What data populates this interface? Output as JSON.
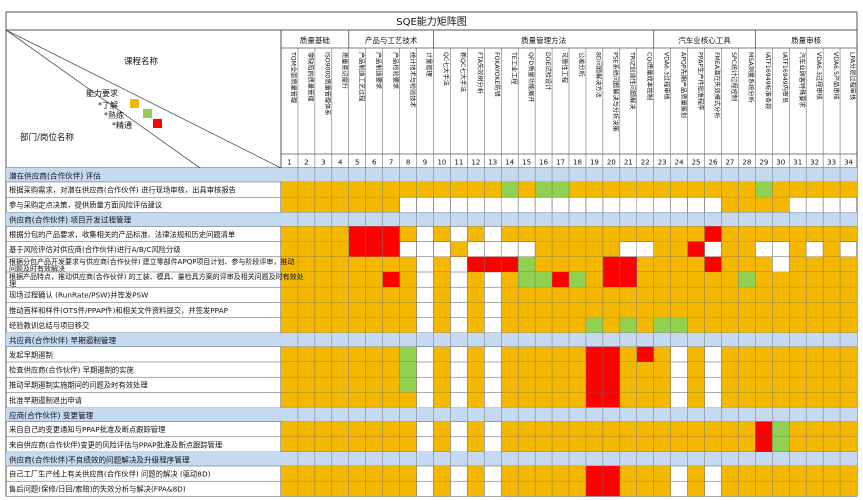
{
  "title": "SQE能力矩阵图",
  "corner": {
    "course_label": "课程名称",
    "ability_label": "能力要求",
    "dept_label": "部门/岗位名称",
    "legend": [
      {
        "label": "*了解",
        "level": "know",
        "color": "#f5b800"
      },
      {
        "label": "*熟练",
        "level": "skilled",
        "color": "#92d050"
      },
      {
        "label": "*精通",
        "level": "expert",
        "color": "#ff0000"
      }
    ]
  },
  "colors": {
    "O": "#f5b800",
    "G": "#92d050",
    "R": "#ff0000",
    "band": "#c5d9f1",
    "line": "#555555"
  },
  "groups": [
    {
      "name": "质量基础",
      "span": 4
    },
    {
      "name": "产品与工艺技术",
      "span": 5
    },
    {
      "name": "质量管理方法",
      "span": 13
    },
    {
      "name": "汽车业核心工具",
      "span": 6
    },
    {
      "name": "质量审核",
      "span": 6
    }
  ],
  "courses": [
    "TQM全面质量管理",
    "零缺陷的质量管理",
    "ISO9000质量管理体系",
    "质量意识提升",
    "产品制造工艺过程",
    "产品制造要求",
    "产品检验要求",
    "统计技术与检验技术",
    "计量管理",
    "QC七大手法",
    "新QC七大手法",
    "FTA失效树分析",
    "FOKAYOKE防错",
    "TE工业工程",
    "QFD质量功能展开",
    "DOE试验设计",
    "可靠性工程",
    "公差分析",
    "8D问题解决方法",
    "PSE系统问题解决与分析决策",
    "TRIZ创造性问题解决",
    "CQI质量成本控制",
    "VDA6.3过程审核",
    "APQP先期产品质量策划",
    "PPAP生产件批准程序",
    "FMEA潜在失效模式分析",
    "SPC统计过程控制",
    "MSA测量系统分析",
    "IATF16949标准条款",
    "IATF16949内审员",
    "汽车业顾客特殊要求",
    "VDA6.3过程审核",
    "VDA6.5产品审核",
    "LPA分层过程审核"
  ],
  "rows": [
    {
      "type": "band",
      "label": "潜在供应商(合作伙伴) 评估"
    },
    {
      "type": "row",
      "label": "根据采购需求，对潜在供应商(合作伙伴) 进行现场审核，出具审核报告",
      "cells": "OOOOOOOOOOOOOGOGGOOOOOOOOOOOGOOOOO"
    },
    {
      "type": "row",
      "label": "参与采购定点决策，提供质量方面风险评估建议",
      "cells": "OOOOOOO...................OOOO...."
    },
    {
      "type": "band",
      "label": "供应商(合作伙伴) 项目开发过程管理"
    },
    {
      "type": "row",
      "label": "根据分包的产品要求，收集相关的产品标准、法律法规和历史问题清单",
      "cells": "OOOORRRO.O.O.OOOOOOOOOOOOROOOOOOOO"
    },
    {
      "type": "row",
      "label": "基于风险评估对供应商(合作伙伴)进行A/B/C风险分级",
      "cells": "OOOORRR...O....OOOOO..OOR.OO..O.O"
    },
    {
      "type": "row",
      "label": "根据分包产品开发要求与供应商(合作伙伴) 建立零部件APQP项目计划、参与阶段评审，推动问题及时有效解决",
      "cells": "OOOOOOOO.O.RRRGOOOORROOOOROOO.OOOO"
    },
    {
      "type": "row",
      "label": "根据产品特点，推动供应商(合作伙伴) 的工装、模具、量检具方案的评审及相关问题及时有效处理",
      "cells": "OOOOOORO.O.O.OGGRGORROOOOOOGOOOOOO"
    },
    {
      "type": "row",
      "label": "现场过程确认 (RunRate/PSW)并签发PSW",
      "cells": "OOOOOOOO.O.O.OOOOOOOOOOOOOOOOOOOOO"
    },
    {
      "type": "row",
      "label": "推动首样和样件(OTS件/PPAP件)和相关文件资料提交，并签发PPAP",
      "cells": "OOOOOOOO.O.O.OOOOOOOOOOOOOOOOOOOOO"
    },
    {
      "type": "row",
      "label": "经验教训总结与项目移交",
      "cells": "OOOOOOOO.O.O.OOOOOGOGOGGOOOOOOOOOO"
    },
    {
      "type": "band",
      "label": "共应商(合作伙伴) 早期遏制管理"
    },
    {
      "type": "row",
      "label": "发起早期遏制",
      "cells": "OOOOOOOG.O.O.OOOOORRORO.O.OOOOOOOO"
    },
    {
      "type": "row",
      "label": "检查供应商(合作伙伴) 早期遏制的实施",
      "cells": "OOOOOOOG.O.O.OOOOORROOO.O.OOOOOOOO"
    },
    {
      "type": "row",
      "label": "推动早期遏制实施期间的问题及时有效处理",
      "cells": "OOOOOOOG.O.O.OOOOORROOO.O.OOOOOOOO"
    },
    {
      "type": "row",
      "label": "批准早期遏制退出申请",
      "cells": "OOOOOOOO.O.O.OOOOORROOO.O.OOOOOOOO"
    },
    {
      "type": "band",
      "label": "应商(合作伙伴) 变更管理"
    },
    {
      "type": "row",
      "label": "来自自己的变更通知与PPAP批准及断点跟踪管理",
      "cells": "OOOOOOOO.O.O.OOOOOOOOOOOOOOORGOOOO"
    },
    {
      "type": "row",
      "label": "来自供应商(合作伙伴)变更的风险评估与PPAP批准及断点跟踪管理",
      "cells": "OOOOOOOO.O.O.OOOOOOOOOOOOOOORGOOOO"
    },
    {
      "type": "band",
      "label": "供应商(合作伙伴)不良绩效的问题解决及升级程序管理"
    },
    {
      "type": "row",
      "label": "自己工厂生产线上有关供应商(合作伙伴) 问题的解决 (驱动8D)",
      "cells": "OOOOOOOO.O.O.OOOOORROOO.O.OOOOOOOO"
    },
    {
      "type": "row",
      "label": "售后问题(保修/日回/索赔)的失效分析与解决(FPA&8D)",
      "cells": "OOOOOOOO.O.O.OOOOORROOO.O.OOOOOOOO"
    }
  ]
}
